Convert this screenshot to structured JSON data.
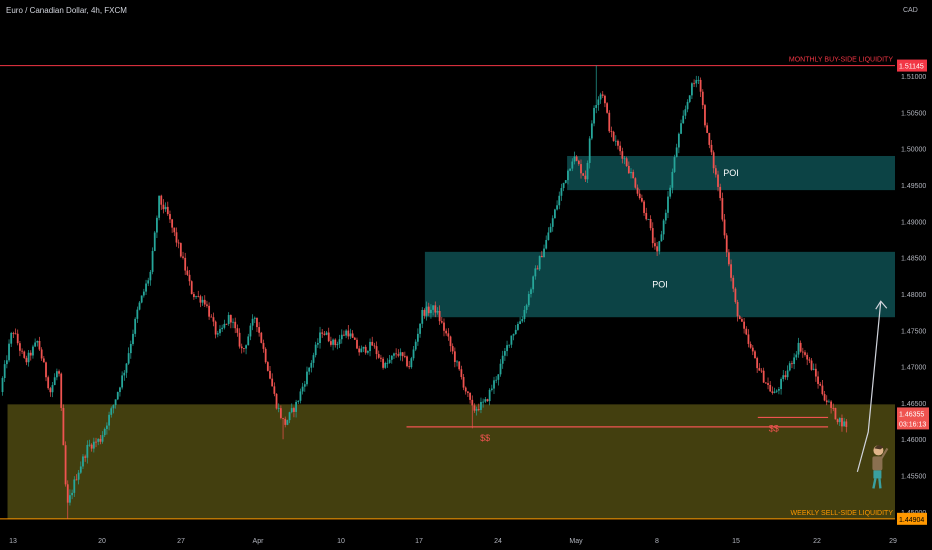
{
  "header": {
    "title": "Euro / Canadian Dollar, 4h, FXCM"
  },
  "colors": {
    "background": "#000000",
    "up": "#26a69a",
    "down": "#ef5350",
    "buy_line": "#f23645",
    "sell_line": "#ff9800",
    "sell_zone": "#5a5414",
    "poi_zone": "#0d4a4d",
    "arrow": "#d1d4dc",
    "axis_text": "#b2b5be"
  },
  "chart_data": {
    "type": "candlestick",
    "title": "Euro / Canadian Dollar, 4h, FXCM",
    "currency_label": "CAD",
    "y_ticks": [
      "1.51000",
      "1.50500",
      "1.50000",
      "1.49500",
      "1.49000",
      "1.48500",
      "1.48000",
      "1.47500",
      "1.47000",
      "1.46500",
      "1.46000",
      "1.45500",
      "1.45000"
    ],
    "x_ticks": [
      "13",
      "20",
      "27",
      "Apr",
      "10",
      "17",
      "24",
      "May",
      "8",
      "15",
      "22",
      "29"
    ],
    "ylim": [
      1.4475,
      1.518
    ],
    "grid": false,
    "current_price": {
      "label": "1.46355",
      "countdown": "03:16:13",
      "value": 1.46355
    },
    "levels": [
      {
        "name": "monthly",
        "label": "MONTHLY BUY-SIDE LIQUIDITY",
        "price_label": "1.51145",
        "value": 1.51145
      },
      {
        "name": "weekly",
        "label": "WEEKLY SELL-SIDE LIQUIDITY",
        "price_label": "1.44904",
        "value": 1.44904
      }
    ],
    "zones": [
      {
        "name": "poi-upper",
        "label": "POI",
        "x_start": 67.8,
        "x_end": 107,
        "y_top": 1.499,
        "y_bottom": 1.4943
      },
      {
        "name": "poi-lower",
        "label": "POI",
        "x_start": 50.8,
        "x_end": 107,
        "y_top": 1.4858,
        "y_bottom": 1.4768
      },
      {
        "name": "sell-zone",
        "label": "",
        "x_start": 0.9,
        "x_end": 107,
        "y_top": 1.4648,
        "y_bottom": 1.449
      }
    ],
    "liquidity_marks": [
      {
        "name": "equal-lows-left",
        "label": "$$",
        "x_start": 48.6,
        "x_end": 99,
        "value": 1.4617
      },
      {
        "name": "equal-lows-right",
        "label": "$$",
        "x_start": 90.6,
        "x_end": 99,
        "value": 1.463
      }
    ],
    "projection": {
      "points": [
        [
          102.5,
          1.4555
        ],
        [
          103.8,
          1.461
        ],
        [
          105.3,
          1.479
        ]
      ]
    },
    "path": [
      [
        0,
        1.4665
      ],
      [
        1.5,
        1.4752
      ],
      [
        3,
        1.4705
      ],
      [
        4.5,
        1.4735
      ],
      [
        6,
        1.4665
      ],
      [
        7,
        1.47
      ],
      [
        8,
        1.4505
      ],
      [
        9,
        1.4545
      ],
      [
        10.5,
        1.459
      ],
      [
        12,
        1.46
      ],
      [
        13.5,
        1.4645
      ],
      [
        15,
        1.47
      ],
      [
        16.5,
        1.478
      ],
      [
        18,
        1.483
      ],
      [
        19,
        1.493
      ],
      [
        20,
        1.491
      ],
      [
        21.5,
        1.486
      ],
      [
        23,
        1.48
      ],
      [
        24.5,
        1.479
      ],
      [
        26,
        1.474
      ],
      [
        27.5,
        1.477
      ],
      [
        29,
        1.472
      ],
      [
        30.5,
        1.477
      ],
      [
        32,
        1.47
      ],
      [
        33,
        1.465
      ],
      [
        34,
        1.462
      ],
      [
        35.5,
        1.465
      ],
      [
        37,
        1.47
      ],
      [
        38.5,
        1.475
      ],
      [
        40,
        1.473
      ],
      [
        41.5,
        1.475
      ],
      [
        43,
        1.472
      ],
      [
        44.5,
        1.473
      ],
      [
        46,
        1.47
      ],
      [
        47.5,
        1.472
      ],
      [
        49,
        1.47
      ],
      [
        50.5,
        1.4775
      ],
      [
        52,
        1.478
      ],
      [
        53.5,
        1.474
      ],
      [
        55,
        1.469
      ],
      [
        56.5,
        1.464
      ],
      [
        58,
        1.465
      ],
      [
        59.5,
        1.469
      ],
      [
        61,
        1.474
      ],
      [
        62.5,
        1.477
      ],
      [
        64,
        1.483
      ],
      [
        65.5,
        1.488
      ],
      [
        67,
        1.494
      ],
      [
        68.5,
        1.499
      ],
      [
        70,
        1.496
      ],
      [
        71,
        1.506
      ],
      [
        72,
        1.508
      ],
      [
        73,
        1.502
      ],
      [
        74.5,
        1.499
      ],
      [
        76,
        1.495
      ],
      [
        77.5,
        1.49
      ],
      [
        78.5,
        1.485
      ],
      [
        80,
        1.494
      ],
      [
        81,
        1.501
      ],
      [
        82.5,
        1.508
      ],
      [
        83.5,
        1.51
      ],
      [
        84.5,
        1.502
      ],
      [
        86,
        1.494
      ],
      [
        87,
        1.485
      ],
      [
        88,
        1.478
      ],
      [
        89.5,
        1.473
      ],
      [
        91,
        1.469
      ],
      [
        92.5,
        1.466
      ],
      [
        94,
        1.469
      ],
      [
        95.5,
        1.473
      ],
      [
        97,
        1.47
      ],
      [
        98.5,
        1.466
      ],
      [
        100,
        1.463
      ],
      [
        101,
        1.462
      ]
    ],
    "extremes": [
      {
        "x": 71.2,
        "high": 1.5115
      },
      {
        "x": 83.5,
        "high": 1.51
      },
      {
        "x": 8,
        "low": 1.449
      },
      {
        "x": 56.5,
        "low": 1.4615
      },
      {
        "x": 33.8,
        "low": 1.46
      }
    ]
  }
}
